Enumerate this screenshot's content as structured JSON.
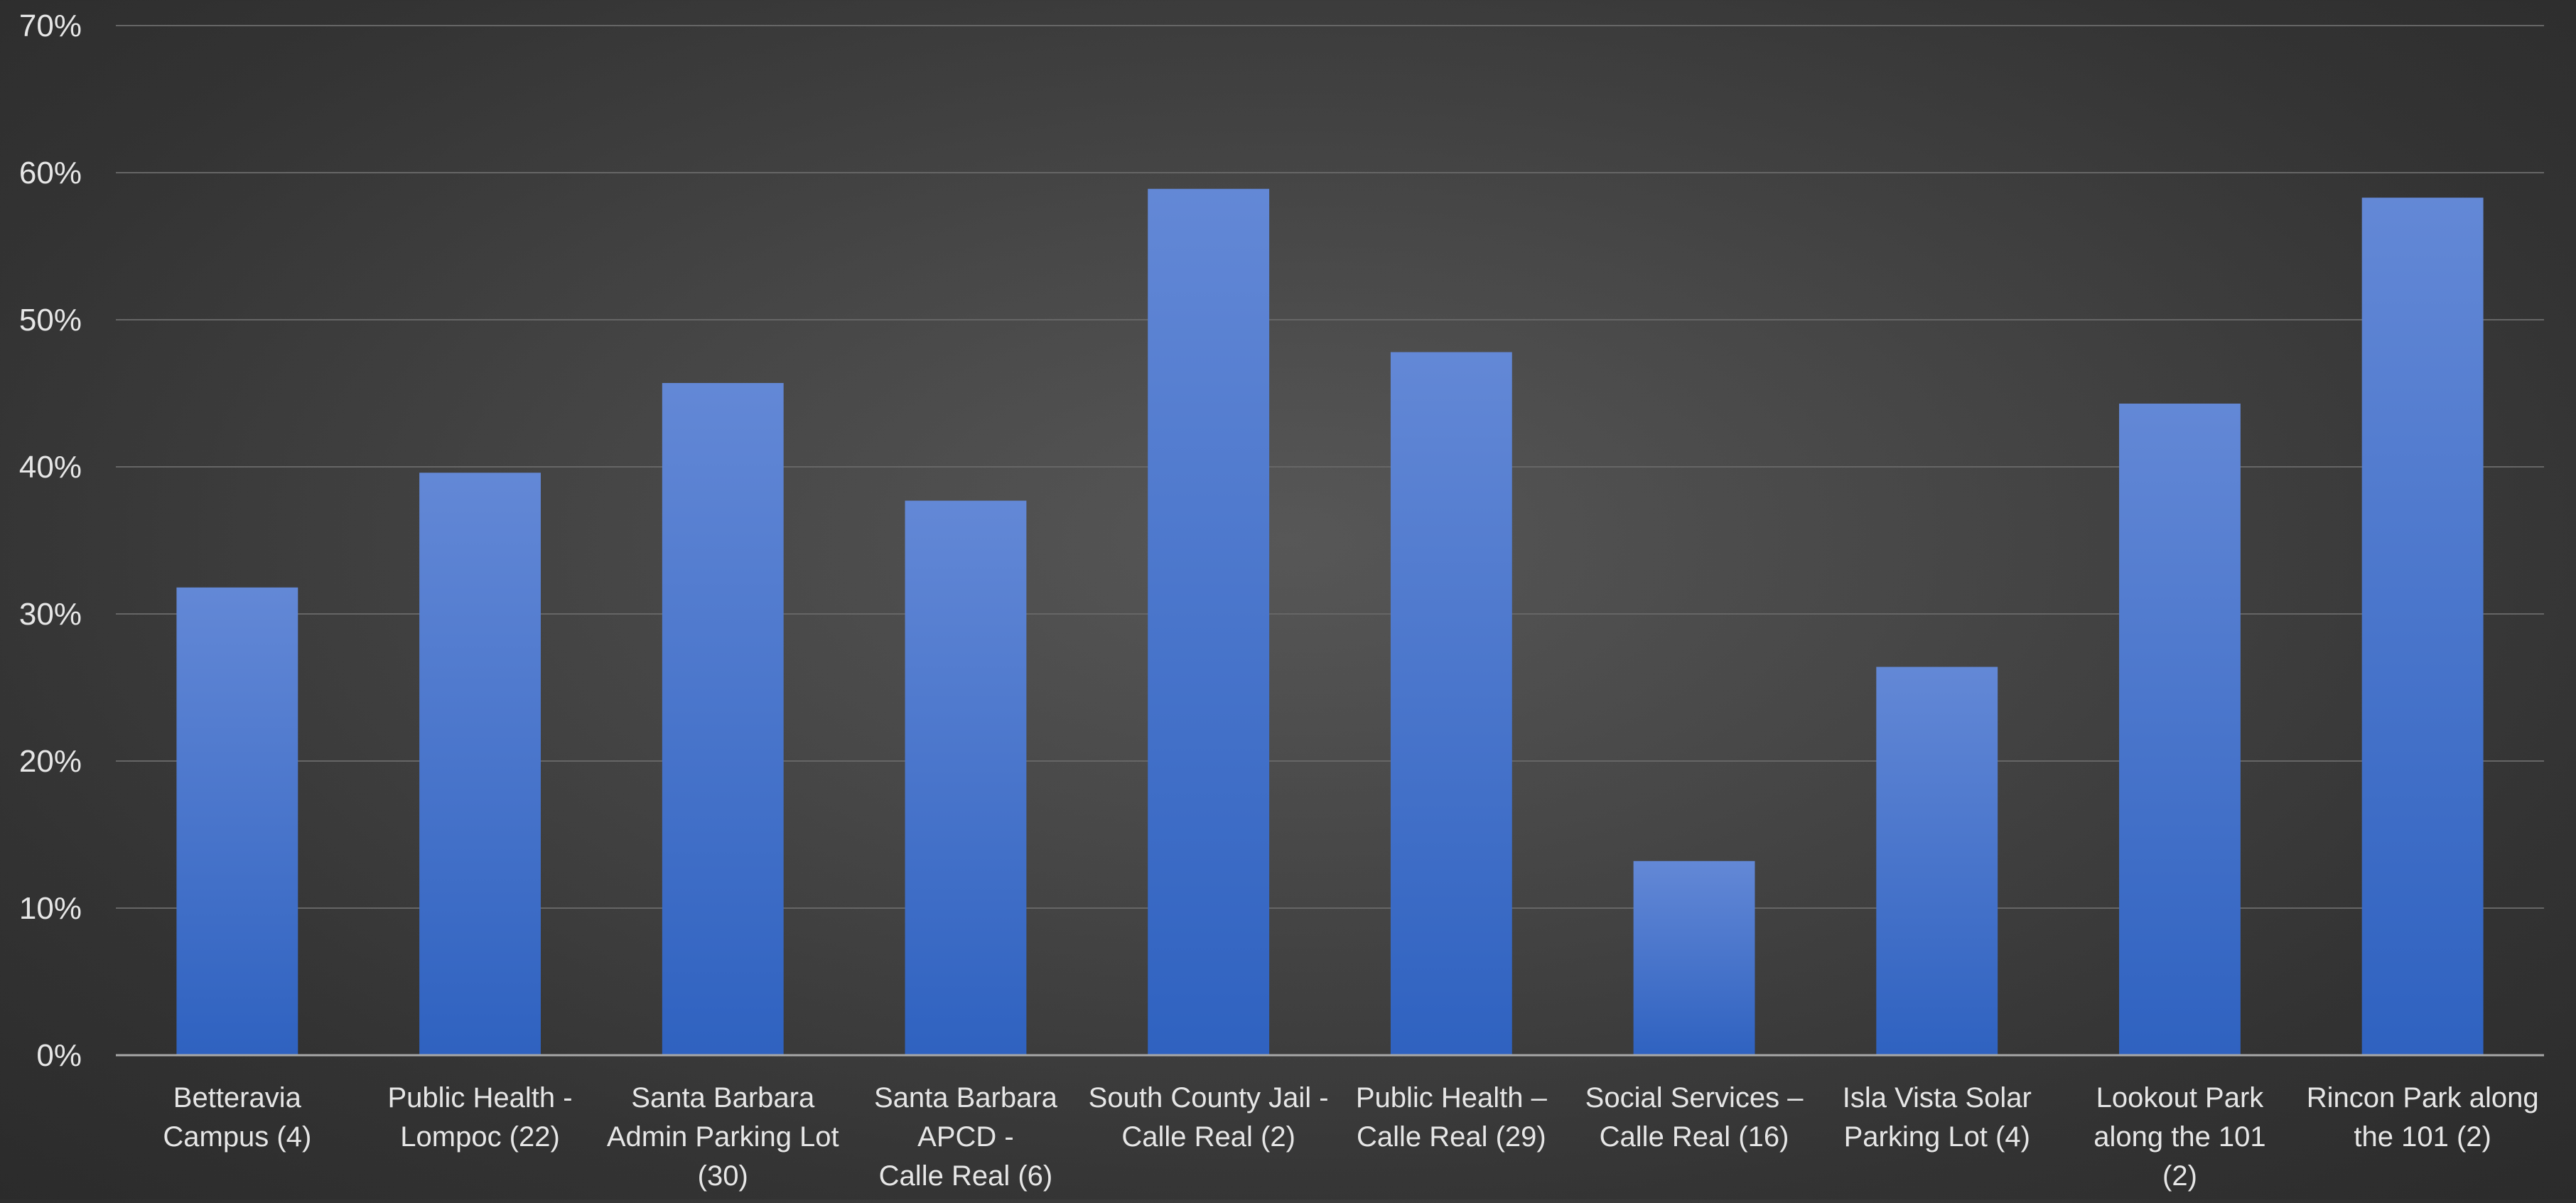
{
  "colors": {
    "bar_top": "#6388d6",
    "bar_bottom": "#2f62c0",
    "grid": "#666666",
    "axis": "#a8a8a8",
    "text": "#e6e6e6"
  },
  "chart_data": {
    "type": "bar",
    "title": "",
    "xlabel": "",
    "ylabel": "",
    "ylim": [
      0,
      70
    ],
    "y_ticks": [
      0,
      10,
      20,
      30,
      40,
      50,
      60,
      70
    ],
    "y_tick_labels": [
      "0%",
      "10%",
      "20%",
      "30%",
      "40%",
      "50%",
      "60%",
      "70%"
    ],
    "grid": true,
    "legend": "none",
    "categories": [
      [
        "Betteravia",
        "Campus (4)"
      ],
      [
        "Public Health -",
        "Lompoc (22)"
      ],
      [
        "Santa Barbara",
        "Admin Parking Lot",
        "(30)"
      ],
      [
        "Santa Barbara",
        "APCD -",
        "Calle Real (6)"
      ],
      [
        "South County Jail -",
        "Calle Real (2)"
      ],
      [
        "Public Health –",
        "Calle Real (29)"
      ],
      [
        "Social Services –",
        "Calle Real (16)"
      ],
      [
        "Isla Vista Solar",
        "Parking Lot (4)"
      ],
      [
        "Lookout Park",
        "along the 101",
        "(2)"
      ],
      [
        "Rincon Park along",
        "the 101   (2)"
      ]
    ],
    "values": [
      31.8,
      39.6,
      45.7,
      37.7,
      58.9,
      47.8,
      13.2,
      26.4,
      44.3,
      58.3
    ]
  }
}
